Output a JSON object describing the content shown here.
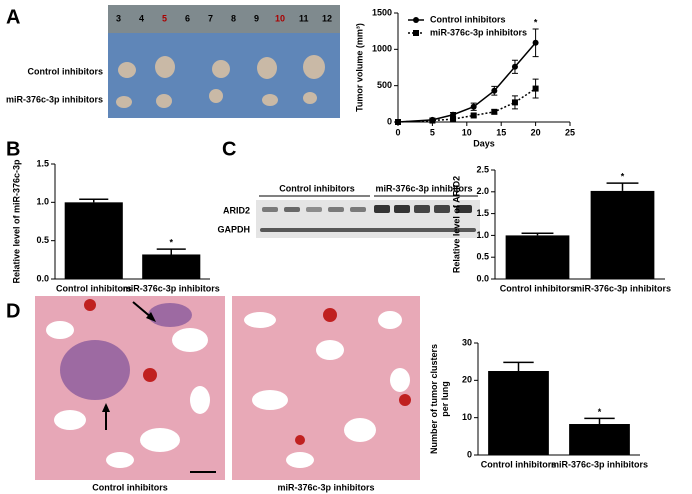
{
  "panel_labels": [
    "A",
    "B",
    "C",
    "D"
  ],
  "photo": {
    "ruler": [
      "3",
      "4",
      "5",
      "6",
      "7",
      "8",
      "9",
      "10",
      "11",
      "12"
    ],
    "rows": [
      "Control inhibitors",
      "miR-376c-3p inhibitors"
    ]
  },
  "blot": {
    "groups": [
      "Control inhibitors",
      "miR-376c-3p inhibitors"
    ],
    "rows": [
      "ARID2",
      "GAPDH"
    ]
  },
  "histology": {
    "captions": [
      "Control inhibitors",
      "miR-376c-3p inhibitors"
    ]
  },
  "chart_data": [
    {
      "type": "line",
      "xlabel": "Days",
      "ylabel": "Tumor volume (mm³)",
      "x": [
        0,
        5,
        8,
        11,
        14,
        17,
        20
      ],
      "series": [
        {
          "name": "Control inhibitors",
          "color": "#000000",
          "marker": "circle",
          "line_style": "solid",
          "values": [
            0,
            30,
            100,
            210,
            430,
            760,
            1090
          ],
          "errors": [
            0,
            10,
            30,
            50,
            60,
            90,
            190
          ]
        },
        {
          "name": "miR-376c-3p inhibitors",
          "color": "#000000",
          "marker": "square",
          "line_style": "dotted",
          "values": [
            0,
            20,
            40,
            90,
            140,
            270,
            460
          ],
          "errors": [
            0,
            5,
            10,
            20,
            30,
            90,
            130
          ]
        }
      ],
      "xlim": [
        0,
        25
      ],
      "xticks": [
        0,
        5,
        10,
        15,
        20,
        25
      ],
      "ylim": [
        0,
        1500
      ],
      "yticks": [
        0,
        500,
        1000,
        1500
      ],
      "annotation": "*"
    },
    {
      "type": "bar",
      "ylabel": "Relative level of miR-376c-3p",
      "categories": [
        "Control inhibitors",
        "miR-376c-3p inhibitors"
      ],
      "values": [
        1.0,
        0.32
      ],
      "errors": [
        0.04,
        0.07
      ],
      "color": "#000000",
      "ylim": [
        0,
        1.5
      ],
      "yticks": [
        {
          "value": 0,
          "label": "0.0"
        },
        {
          "value": 0.5,
          "label": "0.5"
        },
        {
          "value": 1,
          "label": "1.0"
        },
        {
          "value": 1.5,
          "label": "1.5"
        }
      ],
      "annotation": "*"
    },
    {
      "type": "bar",
      "ylabel": "Relative level of ARID2",
      "categories": [
        "Control inhibitors",
        "miR-376c-3p inhibitors"
      ],
      "values": [
        1.0,
        2.02
      ],
      "errors": [
        0.05,
        0.18
      ],
      "color": "#000000",
      "ylim": [
        0,
        2.5
      ],
      "yticks": [
        {
          "value": 0,
          "label": "0.0"
        },
        {
          "value": 0.5,
          "label": "0.5"
        },
        {
          "value": 1,
          "label": "1.0"
        },
        {
          "value": 1.5,
          "label": "1.5"
        },
        {
          "value": 2,
          "label": "2.0"
        },
        {
          "value": 2.5,
          "label": "2.5"
        }
      ],
      "annotation": "*"
    },
    {
      "type": "bar",
      "ylabel": [
        "Number of tumor clusters",
        "per lung"
      ],
      "categories": [
        "Control inhibitors",
        "miR-376c-3p inhibitors"
      ],
      "values": [
        22.5,
        8.3
      ],
      "errors": [
        2.3,
        1.5
      ],
      "color": "#000000",
      "ylim": [
        0,
        30
      ],
      "yticks": [
        0,
        10,
        20,
        30
      ],
      "annotation": "*"
    }
  ]
}
